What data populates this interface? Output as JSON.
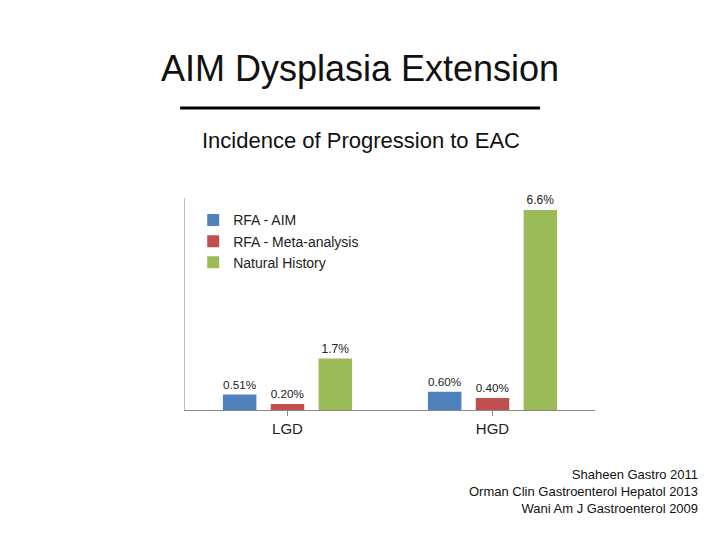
{
  "chart_data": {
    "type": "bar",
    "title": "AIM Dysplasia Extension",
    "subtitle": "Incidence of Progression to EAC",
    "categories": [
      "LGD",
      "HGD"
    ],
    "series": [
      {
        "name": "RFA - AIM",
        "color": "#4f81bd",
        "values": [
          0.51,
          0.6
        ],
        "value_labels": [
          "0.51%",
          "0.60%"
        ]
      },
      {
        "name": "RFA - Meta-analysis",
        "color": "#c0504d",
        "values": [
          0.2,
          0.4
        ],
        "value_labels": [
          "0.20%",
          "0.40%"
        ]
      },
      {
        "name": "Natural History",
        "color": "#9bbb59",
        "values": [
          1.7,
          6.6
        ],
        "value_labels": [
          "1.7%",
          "6.6%"
        ]
      }
    ],
    "ylim": [
      0,
      7
    ],
    "grid": false,
    "legend": "top left",
    "data_labels": true,
    "tick_labels": "x",
    "annotations": [
      "Shaheen Gastro 2011",
      "Orman Clin Gastroenterol Hepatol 2013",
      "Wani Am J Gastroenterol 2009"
    ]
  }
}
